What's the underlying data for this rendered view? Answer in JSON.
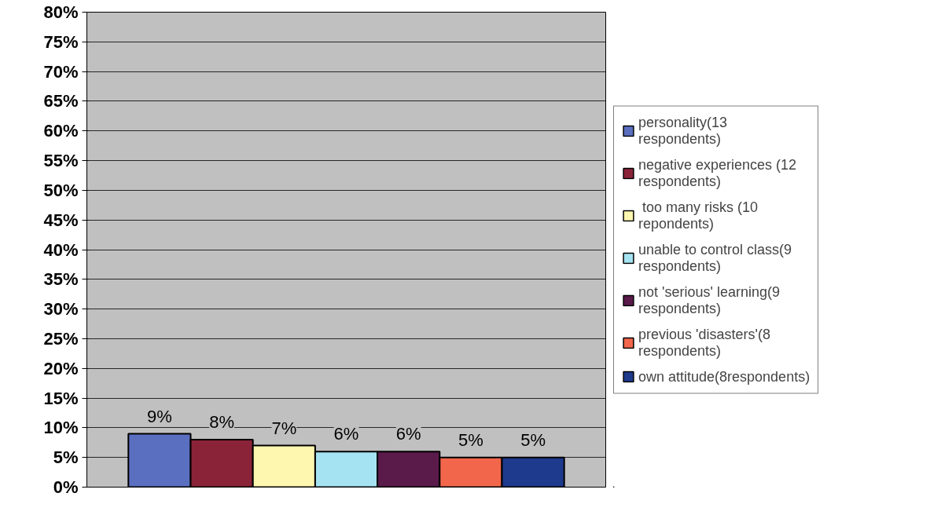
{
  "chart_data": {
    "type": "bar",
    "categories": [
      null
    ],
    "series": [
      {
        "name": "personality(13 respondents)",
        "color": "#5b6fc0",
        "values": [
          9
        ]
      },
      {
        "name": "negative experiences (12 respondents)",
        "color": "#8b2338",
        "values": [
          8
        ]
      },
      {
        "name": " too many risks (10 repondents)",
        "color": "#fdf7b0",
        "values": [
          7
        ]
      },
      {
        "name": "unable to control class(9 respondents)",
        "color": "#a6e3f2",
        "values": [
          6
        ]
      },
      {
        "name": "not 'serious' learning(9 respondents)",
        "color": "#5a1a4a",
        "values": [
          6
        ]
      },
      {
        "name": "previous 'disasters'(8 respondents)",
        "color": "#f2674c",
        "values": [
          5
        ]
      },
      {
        "name": "own attitude(8respondents)",
        "color": "#1e3a8c",
        "values": [
          5
        ]
      }
    ],
    "ylim": [
      0,
      80
    ],
    "yticks": [
      {
        "value": 0,
        "label": "0%"
      },
      {
        "value": 5,
        "label": "5%"
      },
      {
        "value": 10,
        "label": "10%"
      },
      {
        "value": 15,
        "label": "15%"
      },
      {
        "value": 20,
        "label": "20%"
      },
      {
        "value": 25,
        "label": "25%"
      },
      {
        "value": 30,
        "label": "30%"
      },
      {
        "value": 35,
        "label": "35%"
      },
      {
        "value": 40,
        "label": "40%"
      },
      {
        "value": 45,
        "label": "45%"
      },
      {
        "value": 50,
        "label": "50%"
      },
      {
        "value": 55,
        "label": "55%"
      },
      {
        "value": 60,
        "label": "60%"
      },
      {
        "value": 65,
        "label": "65%"
      },
      {
        "value": 70,
        "label": "70%"
      },
      {
        "value": 75,
        "label": "75%"
      },
      {
        "value": 80,
        "label": "80%"
      }
    ],
    "value_labels": [
      "9%",
      "8%",
      "7%",
      "6%",
      "6%",
      "5%",
      "5%"
    ],
    "grid": "y",
    "legend": "right"
  }
}
